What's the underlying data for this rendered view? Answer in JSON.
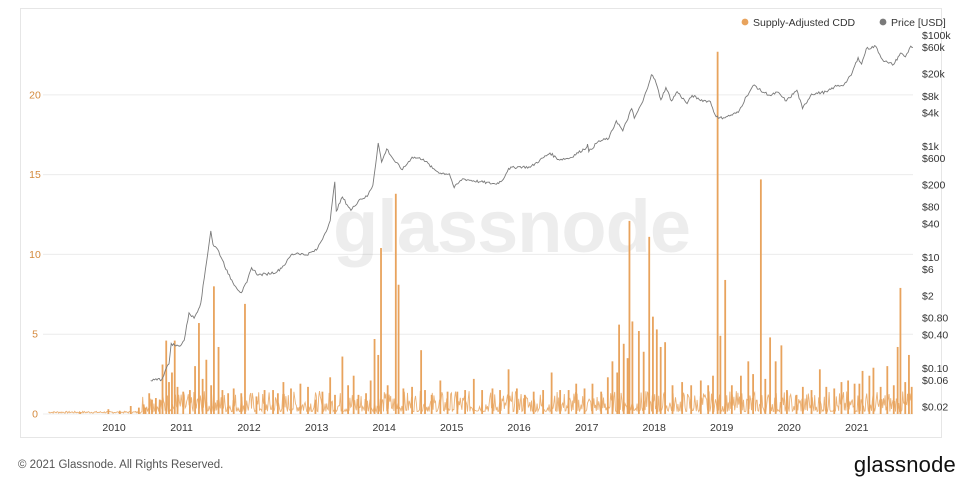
{
  "footer": {
    "copyright": "© 2021 Glassnode. All Rights Reserved.",
    "logo": "glassnode"
  },
  "watermark": "glassnode",
  "colors": {
    "cdd": "#e8a35d",
    "price": "#7a7a7a",
    "grid": "#ececec"
  },
  "chart_data": {
    "type": "bar",
    "title": "",
    "legend": {
      "placement": "top-right"
    },
    "x_axis": {
      "type": "date",
      "range": [
        "2009-01-03",
        "2021-11-01"
      ],
      "ticks": [
        "2010",
        "2011",
        "2012",
        "2013",
        "2014",
        "2015",
        "2016",
        "2017",
        "2018",
        "2019",
        "2020",
        "2021"
      ]
    },
    "y_left": {
      "range": [
        0,
        24
      ],
      "ticks": [
        0,
        5,
        10,
        15,
        20
      ],
      "tick_labels": [
        "0",
        "5",
        "10",
        "15",
        "20"
      ]
    },
    "y_right": {
      "scale": "log",
      "range": [
        0.015,
        120000
      ],
      "ticks": [
        0.02,
        0.06,
        0.1,
        0.4,
        0.8,
        2,
        6,
        10,
        40,
        80,
        200,
        600,
        1000,
        4000,
        8000,
        20000,
        60000,
        100000
      ],
      "tick_labels": [
        "$0.02",
        "$0.06",
        "$0.10",
        "$0.40",
        "$0.80",
        "$2",
        "$6",
        "$10",
        "$40",
        "$80",
        "$200",
        "$600",
        "$1k",
        "$4k",
        "$8k",
        "$20k",
        "$60k",
        "$100k"
      ]
    },
    "grid": {
      "horizontal": true,
      "vertical": false
    },
    "series": [
      {
        "name": "Supply-Adjusted CDD",
        "type": "bar",
        "axis": "left",
        "color": "#e8a35d",
        "points": [
          [
            "2009-07-01",
            0.1
          ],
          [
            "2009-12-01",
            0.3
          ],
          [
            "2010-02-01",
            0.2
          ],
          [
            "2010-04-01",
            0.5
          ],
          [
            "2010-05-15",
            0.4
          ],
          [
            "2010-06-10",
            0.6
          ],
          [
            "2010-06-20",
            0.4
          ],
          [
            "2010-07-10",
            1.3
          ],
          [
            "2010-07-25",
            0.9
          ],
          [
            "2010-08-15",
            1.0
          ],
          [
            "2010-09-05",
            0.9
          ],
          [
            "2010-09-20",
            3.1
          ],
          [
            "2010-10-10",
            4.6
          ],
          [
            "2010-10-25",
            2.0
          ],
          [
            "2010-11-10",
            2.6
          ],
          [
            "2010-11-25",
            4.6
          ],
          [
            "2010-12-10",
            1.7
          ],
          [
            "2011-01-10",
            1.4
          ],
          [
            "2011-02-15",
            1.5
          ],
          [
            "2011-03-15",
            3.0
          ],
          [
            "2011-04-05",
            5.7
          ],
          [
            "2011-04-25",
            2.2
          ],
          [
            "2011-05-15",
            3.4
          ],
          [
            "2011-06-10",
            1.8
          ],
          [
            "2011-06-25",
            8.0
          ],
          [
            "2011-07-20",
            4.2
          ],
          [
            "2011-08-10",
            1.5
          ],
          [
            "2011-09-10",
            1.3
          ],
          [
            "2011-10-10",
            1.6
          ],
          [
            "2011-11-20",
            1.3
          ],
          [
            "2011-12-10",
            6.9
          ],
          [
            "2012-02-10",
            1.1
          ],
          [
            "2012-03-25",
            1.5
          ],
          [
            "2012-05-10",
            1.5
          ],
          [
            "2012-06-05",
            1.3
          ],
          [
            "2012-07-05",
            2.0
          ],
          [
            "2012-08-15",
            1.6
          ],
          [
            "2012-10-05",
            1.9
          ],
          [
            "2012-11-15",
            1.7
          ],
          [
            "2012-12-25",
            0.9
          ],
          [
            "2013-02-01",
            1.4
          ],
          [
            "2013-03-15",
            2.3
          ],
          [
            "2013-04-10",
            1.2
          ],
          [
            "2013-05-20",
            3.6
          ],
          [
            "2013-06-20",
            1.8
          ],
          [
            "2013-07-20",
            2.4
          ],
          [
            "2013-08-15",
            1.2
          ],
          [
            "2013-09-25",
            1.3
          ],
          [
            "2013-10-20",
            2.1
          ],
          [
            "2013-11-10",
            4.7
          ],
          [
            "2013-11-30",
            3.7
          ],
          [
            "2013-12-15",
            10.4
          ],
          [
            "2014-01-20",
            1.8
          ],
          [
            "2014-03-05",
            13.8
          ],
          [
            "2014-03-20",
            8.1
          ],
          [
            "2014-04-15",
            1.6
          ],
          [
            "2014-06-01",
            1.7
          ],
          [
            "2014-07-20",
            4.0
          ],
          [
            "2014-08-10",
            1.5
          ],
          [
            "2014-09-15",
            1.2
          ],
          [
            "2014-11-01",
            2.1
          ],
          [
            "2014-12-10",
            1.4
          ],
          [
            "2015-02-01",
            1.4
          ],
          [
            "2015-03-15",
            1.5
          ],
          [
            "2015-05-01",
            2.2
          ],
          [
            "2015-06-15",
            1.5
          ],
          [
            "2015-08-10",
            1.6
          ],
          [
            "2015-09-20",
            1.5
          ],
          [
            "2015-11-05",
            2.8
          ],
          [
            "2015-12-20",
            1.6
          ],
          [
            "2016-02-01",
            1.2
          ],
          [
            "2016-03-20",
            1.4
          ],
          [
            "2016-05-10",
            1.5
          ],
          [
            "2016-06-25",
            2.6
          ],
          [
            "2016-08-10",
            1.5
          ],
          [
            "2016-09-25",
            1.5
          ],
          [
            "2016-11-05",
            1.9
          ],
          [
            "2016-12-20",
            1.6
          ],
          [
            "2017-02-01",
            1.9
          ],
          [
            "2017-03-20",
            1.4
          ],
          [
            "2017-04-25",
            2.3
          ],
          [
            "2017-05-20",
            3.3
          ],
          [
            "2017-06-15",
            2.6
          ],
          [
            "2017-06-25",
            5.6
          ],
          [
            "2017-07-20",
            4.4
          ],
          [
            "2017-08-10",
            3.5
          ],
          [
            "2017-08-20",
            12.1
          ],
          [
            "2017-09-05",
            5.8
          ],
          [
            "2017-10-10",
            5.2
          ],
          [
            "2017-11-05",
            3.9
          ],
          [
            "2017-12-05",
            11.1
          ],
          [
            "2017-12-25",
            6.1
          ],
          [
            "2018-01-15",
            5.3
          ],
          [
            "2018-02-05",
            4.2
          ],
          [
            "2018-03-01",
            4.5
          ],
          [
            "2018-04-10",
            1.8
          ],
          [
            "2018-06-01",
            2.0
          ],
          [
            "2018-07-20",
            1.8
          ],
          [
            "2018-09-10",
            2.1
          ],
          [
            "2018-10-20",
            1.8
          ],
          [
            "2018-11-15",
            2.4
          ],
          [
            "2018-12-10",
            22.7
          ],
          [
            "2018-12-25",
            4.9
          ],
          [
            "2019-01-20",
            8.4
          ],
          [
            "2019-02-25",
            1.8
          ],
          [
            "2019-04-15",
            2.4
          ],
          [
            "2019-05-25",
            3.3
          ],
          [
            "2019-06-20",
            2.5
          ],
          [
            "2019-08-01",
            14.7
          ],
          [
            "2019-08-25",
            2.2
          ],
          [
            "2019-09-20",
            4.8
          ],
          [
            "2019-10-20",
            3.3
          ],
          [
            "2019-11-20",
            4.3
          ],
          [
            "2019-12-20",
            1.5
          ],
          [
            "2020-02-10",
            1.2
          ],
          [
            "2020-03-15",
            1.7
          ],
          [
            "2020-05-01",
            1.5
          ],
          [
            "2020-06-15",
            2.8
          ],
          [
            "2020-07-20",
            1.7
          ],
          [
            "2020-09-01",
            1.6
          ],
          [
            "2020-10-10",
            2.0
          ],
          [
            "2020-11-15",
            2.1
          ],
          [
            "2020-12-20",
            1.9
          ],
          [
            "2021-01-15",
            1.9
          ],
          [
            "2021-02-01",
            2.7
          ],
          [
            "2021-03-10",
            2.4
          ],
          [
            "2021-04-01",
            2.9
          ],
          [
            "2021-05-10",
            1.7
          ],
          [
            "2021-06-15",
            3.0
          ],
          [
            "2021-07-20",
            1.8
          ],
          [
            "2021-08-10",
            4.2
          ],
          [
            "2021-08-25",
            7.9
          ],
          [
            "2021-09-20",
            2.0
          ],
          [
            "2021-10-10",
            3.7
          ],
          [
            "2021-10-25",
            1.7
          ]
        ]
      },
      {
        "name": "Price [USD]",
        "type": "line",
        "axis": "right",
        "color": "#7a7a7a",
        "start": "2010-07-18",
        "points": [
          [
            "2010-07-18",
            0.06
          ],
          [
            "2010-08-15",
            0.065
          ],
          [
            "2010-09-15",
            0.062
          ],
          [
            "2010-10-10",
            0.1
          ],
          [
            "2010-10-25",
            0.12
          ],
          [
            "2010-11-06",
            0.28
          ],
          [
            "2010-11-25",
            0.26
          ],
          [
            "2010-12-20",
            0.25
          ],
          [
            "2011-01-15",
            0.32
          ],
          [
            "2011-02-10",
            1.0
          ],
          [
            "2011-03-10",
            0.8
          ],
          [
            "2011-04-15",
            1.5
          ],
          [
            "2011-05-10",
            6.0
          ],
          [
            "2011-06-08",
            30.0
          ],
          [
            "2011-06-20",
            17.0
          ],
          [
            "2011-07-15",
            14.0
          ],
          [
            "2011-08-10",
            9.0
          ],
          [
            "2011-09-10",
            5.0
          ],
          [
            "2011-10-20",
            3.0
          ],
          [
            "2011-11-20",
            2.3
          ],
          [
            "2011-12-20",
            3.5
          ],
          [
            "2012-01-15",
            6.5
          ],
          [
            "2012-02-20",
            4.8
          ],
          [
            "2012-04-01",
            5.0
          ],
          [
            "2012-06-01",
            5.5
          ],
          [
            "2012-07-20",
            8.0
          ],
          [
            "2012-08-15",
            11.0
          ],
          [
            "2012-09-20",
            12.0
          ],
          [
            "2012-11-01",
            11.0
          ],
          [
            "2012-12-31",
            13.5
          ],
          [
            "2013-02-15",
            27.0
          ],
          [
            "2013-03-15",
            46.0
          ],
          [
            "2013-04-09",
            230.0
          ],
          [
            "2013-04-17",
            68.0
          ],
          [
            "2013-05-20",
            122.0
          ],
          [
            "2013-07-05",
            70.0
          ],
          [
            "2013-08-20",
            110.0
          ],
          [
            "2013-10-01",
            125.0
          ],
          [
            "2013-11-01",
            200.0
          ],
          [
            "2013-11-30",
            1150.0
          ],
          [
            "2013-12-18",
            520.0
          ],
          [
            "2014-01-15",
            900.0
          ],
          [
            "2014-02-25",
            550.0
          ],
          [
            "2014-04-10",
            380.0
          ],
          [
            "2014-06-01",
            640.0
          ],
          [
            "2014-08-01",
            590.0
          ],
          [
            "2014-09-20",
            400.0
          ],
          [
            "2014-11-01",
            330.0
          ],
          [
            "2014-12-20",
            320.0
          ],
          [
            "2015-01-15",
            180.0
          ],
          [
            "2015-03-01",
            260.0
          ],
          [
            "2015-06-01",
            230.0
          ],
          [
            "2015-08-25",
            210.0
          ],
          [
            "2015-10-01",
            240.0
          ],
          [
            "2015-11-05",
            400.0
          ],
          [
            "2015-12-31",
            430.0
          ],
          [
            "2016-03-01",
            420.0
          ],
          [
            "2016-06-16",
            760.0
          ],
          [
            "2016-08-01",
            580.0
          ],
          [
            "2016-10-01",
            615.0
          ],
          [
            "2016-12-31",
            960.0
          ],
          [
            "2017-01-05",
            1100.0
          ],
          [
            "2017-01-12",
            800.0
          ],
          [
            "2017-03-01",
            1200.0
          ],
          [
            "2017-05-01",
            1400.0
          ],
          [
            "2017-06-10",
            2900.0
          ],
          [
            "2017-07-15",
            1900.0
          ],
          [
            "2017-09-01",
            4800.0
          ],
          [
            "2017-09-15",
            3200.0
          ],
          [
            "2017-11-01",
            6500.0
          ],
          [
            "2017-12-17",
            19500.0
          ],
          [
            "2018-01-05",
            16000.0
          ],
          [
            "2018-02-06",
            6900.0
          ],
          [
            "2018-03-05",
            11500.0
          ],
          [
            "2018-04-05",
            6600.0
          ],
          [
            "2018-05-05",
            9700.0
          ],
          [
            "2018-06-28",
            5900.0
          ],
          [
            "2018-07-25",
            8300.0
          ],
          [
            "2018-09-01",
            7000.0
          ],
          [
            "2018-11-01",
            6400.0
          ],
          [
            "2018-11-25",
            3800.0
          ],
          [
            "2018-12-15",
            3200.0
          ],
          [
            "2019-02-01",
            3450.0
          ],
          [
            "2019-04-01",
            4100.0
          ],
          [
            "2019-05-15",
            8000.0
          ],
          [
            "2019-06-26",
            12800.0
          ],
          [
            "2019-08-01",
            10000.0
          ],
          [
            "2019-09-25",
            8200.0
          ],
          [
            "2019-10-27",
            9500.0
          ],
          [
            "2019-12-17",
            6600.0
          ],
          [
            "2020-02-12",
            10300.0
          ],
          [
            "2020-03-13",
            4800.0
          ],
          [
            "2020-05-01",
            8800.0
          ],
          [
            "2020-07-25",
            9600.0
          ],
          [
            "2020-09-01",
            11800.0
          ],
          [
            "2020-10-25",
            13100.0
          ],
          [
            "2020-12-01",
            19000.0
          ],
          [
            "2021-01-08",
            40000.0
          ],
          [
            "2021-01-27",
            30400.0
          ],
          [
            "2021-02-21",
            57000.0
          ],
          [
            "2021-04-14",
            63500.0
          ],
          [
            "2021-05-19",
            37000.0
          ],
          [
            "2021-06-22",
            31500.0
          ],
          [
            "2021-07-20",
            30000.0
          ],
          [
            "2021-08-25",
            48000.0
          ],
          [
            "2021-09-21",
            41000.0
          ],
          [
            "2021-10-20",
            64000.0
          ],
          [
            "2021-11-01",
            61000.0
          ]
        ]
      }
    ]
  }
}
